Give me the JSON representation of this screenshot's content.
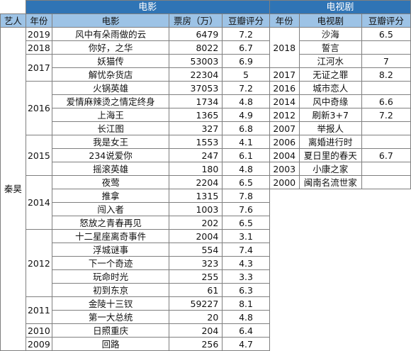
{
  "sections": {
    "movies": "电影",
    "tv": "电视剧"
  },
  "headers": {
    "artist": "艺人",
    "movie_year": "年份",
    "movie_title": "电影",
    "box_office": "票房（万）",
    "movie_rating": "豆瓣评分",
    "tv_year": "年份",
    "tv_title": "电视剧",
    "tv_rating": "豆瓣评分"
  },
  "artist": "秦昊",
  "movies": [
    {
      "year": "2019",
      "title": "风中有朵雨做的云",
      "box": "6479",
      "rating": "7.2"
    },
    {
      "year": "2018",
      "title": "你好，之华",
      "box": "8022",
      "rating": "6.7"
    },
    {
      "year": "2017",
      "title": "妖猫传",
      "box": "53003",
      "rating": "6.9"
    },
    {
      "year": "",
      "title": "解忧杂货店",
      "box": "22304",
      "rating": "5"
    },
    {
      "year": "2016",
      "title": "火锅英雄",
      "box": "37053",
      "rating": "7.2"
    },
    {
      "year": "",
      "title": "爱情麻辣烫之情定终身",
      "box": "1734",
      "rating": "4.8"
    },
    {
      "year": "",
      "title": "上海王",
      "box": "1365",
      "rating": "4.9"
    },
    {
      "year": "",
      "title": "长江图",
      "box": "327",
      "rating": "6.8"
    },
    {
      "year": "2015",
      "title": "我是女王",
      "box": "1553",
      "rating": "4.1"
    },
    {
      "year": "",
      "title": "234说爱你",
      "box": "247",
      "rating": "6.1"
    },
    {
      "year": "",
      "title": "摇滚英雄",
      "box": "180",
      "rating": "4.8"
    },
    {
      "year": "2014",
      "title": "夜莺",
      "box": "2204",
      "rating": "6.5"
    },
    {
      "year": "",
      "title": "推拿",
      "box": "1315",
      "rating": "7.8"
    },
    {
      "year": "",
      "title": "闯入者",
      "box": "1003",
      "rating": "7.6"
    },
    {
      "year": "",
      "title": "怒放之青春再见",
      "box": "202",
      "rating": "6.5"
    },
    {
      "year": "2012",
      "title": "十二星座离奇事件",
      "box": "2004",
      "rating": "3.1"
    },
    {
      "year": "",
      "title": "浮城谜事",
      "box": "554",
      "rating": "7.4"
    },
    {
      "year": "",
      "title": "下一个奇迹",
      "box": "323",
      "rating": "4.3"
    },
    {
      "year": "",
      "title": "玩命时光",
      "box": "255",
      "rating": "3.3"
    },
    {
      "year": "",
      "title": "初到东京",
      "box": "61",
      "rating": "6.3"
    },
    {
      "year": "2011",
      "title": "金陵十三钗",
      "box": "59227",
      "rating": "8.1"
    },
    {
      "year": "",
      "title": "第一大总统",
      "box": "20",
      "rating": "4.8"
    },
    {
      "year": "2010",
      "title": "日照重庆",
      "box": "204",
      "rating": "6.4"
    },
    {
      "year": "2009",
      "title": "回路",
      "box": "256",
      "rating": "4.7"
    }
  ],
  "tv": [
    {
      "year": "2018",
      "title": "沙海",
      "rating": "6.5"
    },
    {
      "year": "",
      "title": "誓言",
      "rating": ""
    },
    {
      "year": "",
      "title": "江河水",
      "rating": "7"
    },
    {
      "year": "2017",
      "title": "无证之罪",
      "rating": "8.2"
    },
    {
      "year": "2016",
      "title": "城市恋人",
      "rating": ""
    },
    {
      "year": "2014",
      "title": "风中奇缘",
      "rating": "6.6"
    },
    {
      "year": "2012",
      "title": "刷新3+7",
      "rating": "7.2"
    },
    {
      "year": "2007",
      "title": "举报人",
      "rating": ""
    },
    {
      "year": "2006",
      "title": "离婚进行时",
      "rating": ""
    },
    {
      "year": "2004",
      "title": "夏日里的春天",
      "rating": "6.7"
    },
    {
      "year": "2003",
      "title": "小康之家",
      "rating": ""
    },
    {
      "year": "2000",
      "title": "闽南名流世家",
      "rating": ""
    }
  ]
}
